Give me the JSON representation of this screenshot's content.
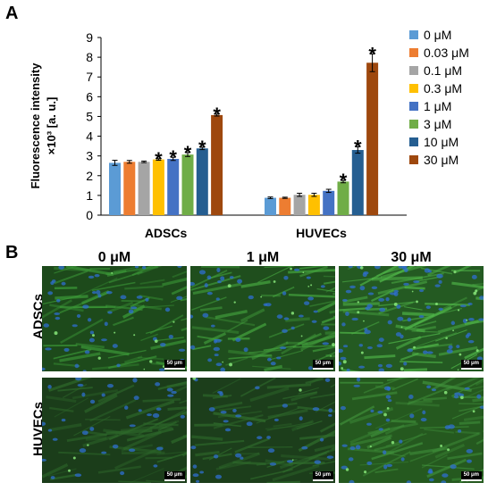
{
  "panels": {
    "a_letter": "A",
    "b_letter": "B"
  },
  "chart_data": {
    "type": "bar",
    "ylabel_line1": "Fluorescence intensity",
    "ylabel_line2": "×10³  [a. u.]",
    "ylim": [
      0,
      9
    ],
    "yticks": [
      "0",
      "1",
      "2",
      "3",
      "4",
      "5",
      "6",
      "7",
      "8",
      "9"
    ],
    "categories": [
      "ADSCs",
      "HUVECs"
    ],
    "legend_position": "right",
    "grid": false,
    "series": [
      {
        "name": "0 μM",
        "color": "#5b9bd5",
        "values": [
          2.65,
          0.88
        ],
        "errors": [
          0.13,
          0.04
        ],
        "significant": [
          false,
          false
        ]
      },
      {
        "name": "0.03 μM",
        "color": "#ed7d31",
        "values": [
          2.7,
          0.88
        ],
        "errors": [
          0.07,
          0.03
        ],
        "significant": [
          false,
          false
        ]
      },
      {
        "name": "0.1 μM",
        "color": "#a5a5a5",
        "values": [
          2.7,
          1.03
        ],
        "errors": [
          0.04,
          0.08
        ],
        "significant": [
          false,
          false
        ]
      },
      {
        "name": "0.3 μM",
        "color": "#ffc000",
        "values": [
          2.82,
          1.03
        ],
        "errors": [
          0.04,
          0.08
        ],
        "significant": [
          true,
          false
        ]
      },
      {
        "name": "1 μM",
        "color": "#4472c4",
        "values": [
          2.85,
          1.23
        ],
        "errors": [
          0.08,
          0.08
        ],
        "significant": [
          true,
          false
        ]
      },
      {
        "name": "3 μM",
        "color": "#70ad47",
        "values": [
          3.07,
          1.7
        ],
        "errors": [
          0.1,
          0.06
        ],
        "significant": [
          true,
          true
        ]
      },
      {
        "name": "10 μM",
        "color": "#255e91",
        "values": [
          3.38,
          3.3
        ],
        "errors": [
          0.06,
          0.16
        ],
        "significant": [
          true,
          true
        ]
      },
      {
        "name": "30 μM",
        "color": "#9e480e",
        "values": [
          5.07,
          7.72
        ],
        "errors": [
          0.05,
          0.45
        ],
        "significant": [
          true,
          true
        ]
      }
    ],
    "significance_mark": "*"
  },
  "micrographs": {
    "columns": [
      "0 μM",
      "1 μM",
      "30 μM"
    ],
    "rows": [
      "ADSCs",
      "HUVECs"
    ],
    "scale_bar": "50 μm"
  }
}
